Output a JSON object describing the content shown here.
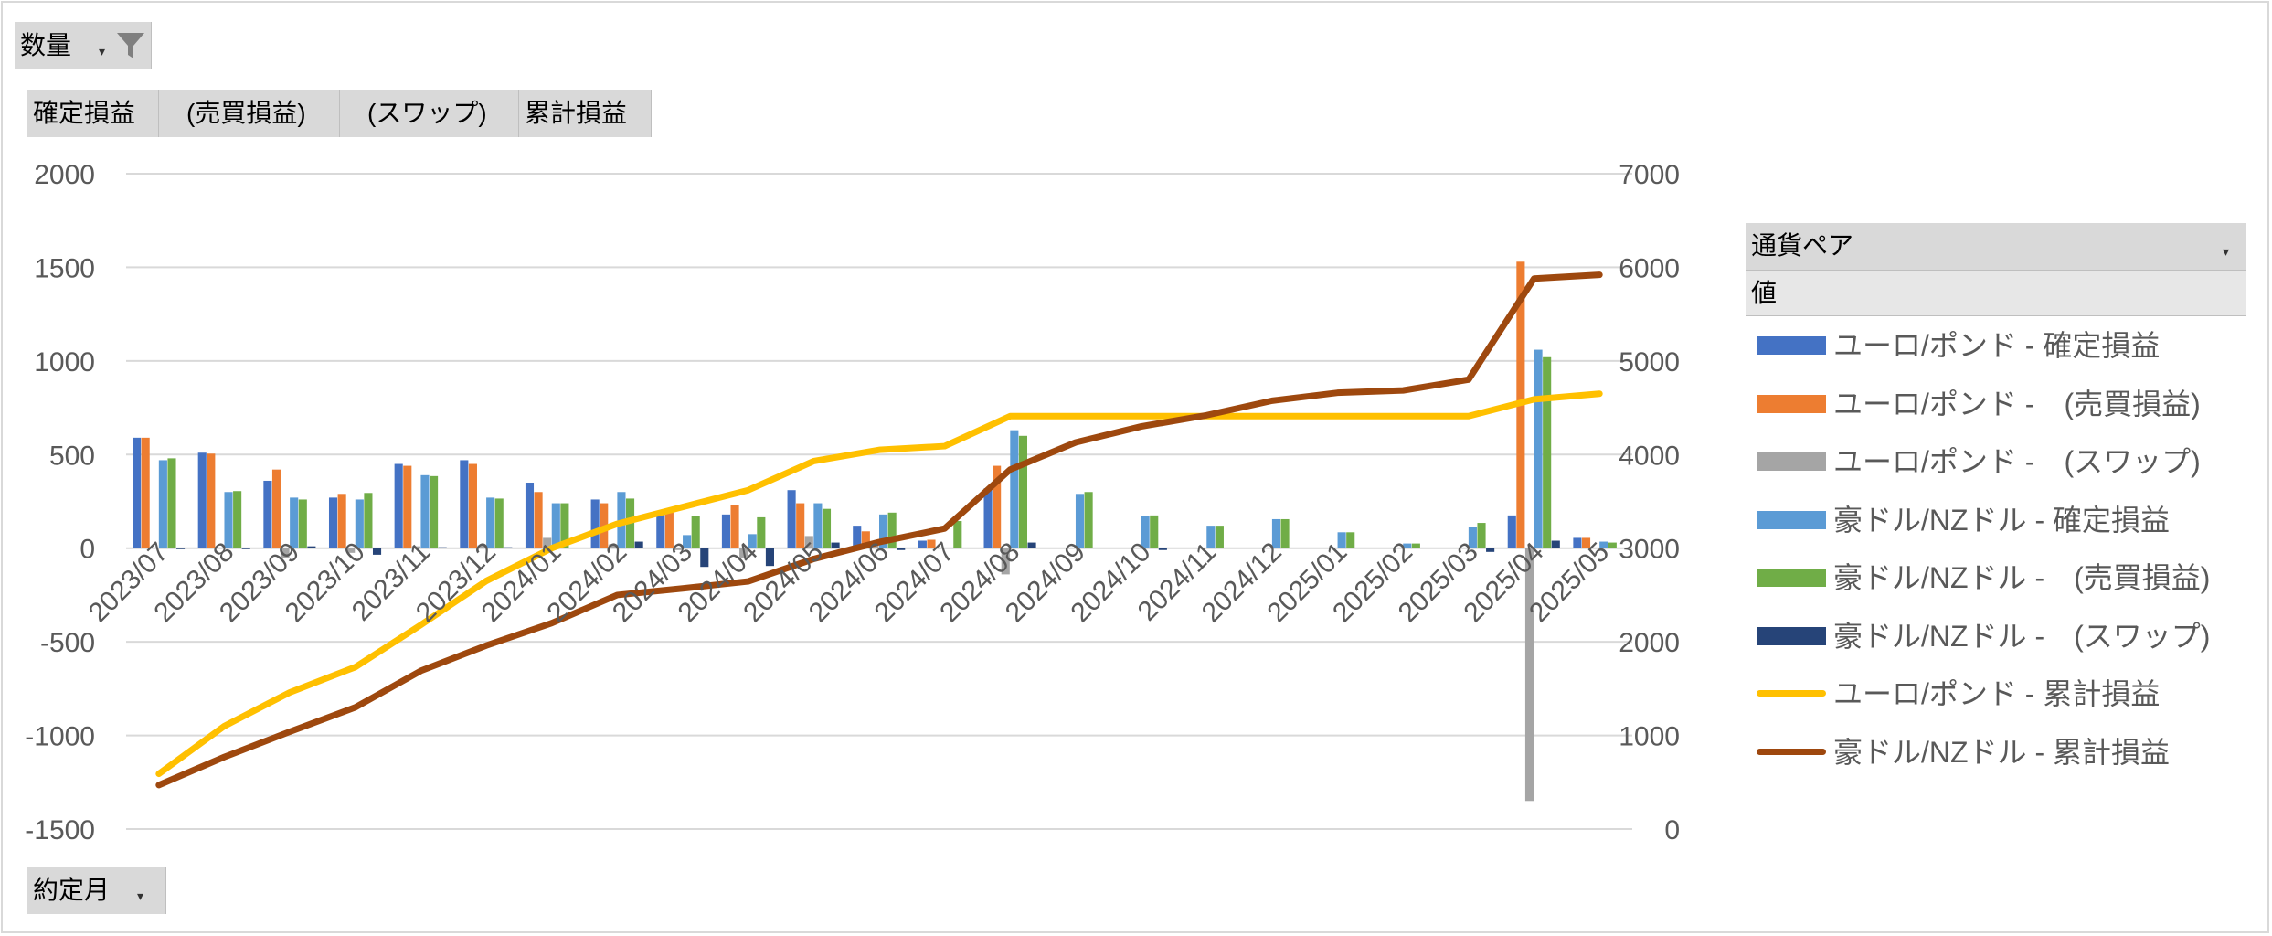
{
  "filter_field": {
    "label": "数量"
  },
  "value_buttons": [
    "確定損益",
    "(売買損益)",
    "(スワップ)",
    "累計損益"
  ],
  "row_field": {
    "label": "約定月"
  },
  "legend": {
    "header": "通貨ペア",
    "subheader": "値"
  },
  "colors": {
    "eur_gbp_confirmed": "#4472c4",
    "eur_gbp_trade": "#ed7d31",
    "eur_gbp_swap": "#a5a5a5",
    "aud_nzd_confirmed": "#5b9bd5",
    "aud_nzd_trade": "#70ad47",
    "aud_nzd_swap": "#264478",
    "eur_gbp_cum": "#ffc000",
    "aud_nzd_cum": "#9e480e"
  },
  "chart_data": {
    "type": "bar",
    "categories": [
      "2023/07",
      "2023/08",
      "2023/09",
      "2023/10",
      "2023/11",
      "2023/12",
      "2024/01",
      "2024/02",
      "2024/03",
      "2024/04",
      "2024/05",
      "2024/06",
      "2024/07",
      "2024/08",
      "2024/09",
      "2024/10",
      "2024/11",
      "2024/12",
      "2025/01",
      "2025/02",
      "2025/03",
      "2025/04",
      "2025/05"
    ],
    "y_left": {
      "ylim": [
        -1500,
        2000
      ],
      "ticks": [
        "2000",
        "1500",
        "1000",
        "500",
        "0",
        "-500",
        "-1000",
        "-1500"
      ]
    },
    "y_right": {
      "ylim": [
        0,
        7000
      ],
      "ticks": [
        "7000",
        "6000",
        "5000",
        "4000",
        "3000",
        "2000",
        "1000",
        "0"
      ]
    },
    "grid": true,
    "legend_position": "right",
    "bar_series": [
      {
        "name": "ユーロ/ポンド - 確定損益",
        "color_key": "eur_gbp_confirmed",
        "values": [
          590,
          510,
          360,
          270,
          450,
          470,
          350,
          260,
          180,
          180,
          310,
          120,
          40,
          320,
          0,
          0,
          0,
          0,
          0,
          0,
          0,
          175,
          55
        ]
      },
      {
        "name": "ユーロ/ポンド -　(売買損益)",
        "color_key": "eur_gbp_trade",
        "values": [
          590,
          505,
          420,
          290,
          440,
          450,
          300,
          240,
          190,
          230,
          240,
          90,
          45,
          440,
          0,
          0,
          0,
          0,
          0,
          0,
          0,
          1530,
          55
        ]
      },
      {
        "name": "ユーロ/ポンド -　(スワップ)",
        "color_key": "eur_gbp_swap",
        "values": [
          0,
          0,
          -55,
          -25,
          10,
          15,
          55,
          20,
          -10,
          -50,
          65,
          25,
          0,
          -140,
          0,
          0,
          0,
          0,
          0,
          0,
          0,
          -1350,
          0
        ]
      },
      {
        "name": "豪ドル/NZドル - 確定損益",
        "color_key": "aud_nzd_confirmed",
        "values": [
          470,
          300,
          270,
          260,
          390,
          270,
          240,
          300,
          70,
          75,
          240,
          180,
          0,
          630,
          290,
          170,
          120,
          155,
          85,
          25,
          115,
          1060,
          35
        ]
      },
      {
        "name": "豪ドル/NZドル -　(売買損益)",
        "color_key": "aud_nzd_trade",
        "values": [
          480,
          305,
          260,
          295,
          385,
          265,
          240,
          265,
          170,
          165,
          210,
          190,
          145,
          600,
          300,
          175,
          120,
          155,
          85,
          25,
          135,
          1020,
          30
        ]
      },
      {
        "name": "豪ドル/NZドル -　(スワップ)",
        "color_key": "aud_nzd_swap",
        "values": [
          -5,
          -5,
          10,
          -35,
          5,
          5,
          0,
          35,
          -100,
          -95,
          30,
          -10,
          0,
          30,
          0,
          -10,
          0,
          0,
          0,
          0,
          -20,
          40,
          0
        ]
      }
    ],
    "line_series": [
      {
        "name": "ユーロ/ポンド - 累計損益",
        "color_key": "eur_gbp_cum",
        "axis": "right",
        "values": [
          590,
          1100,
          1460,
          1730,
          2180,
          2650,
          3000,
          3260,
          3440,
          3620,
          3930,
          4050,
          4090,
          4410,
          4410,
          4410,
          4410,
          4410,
          4410,
          4410,
          4410,
          4590,
          4650
        ]
      },
      {
        "name": "豪ドル/NZドル - 累計損益",
        "color_key": "aud_nzd_cum",
        "axis": "right",
        "values": [
          470,
          770,
          1040,
          1300,
          1690,
          1960,
          2200,
          2500,
          2570,
          2645,
          2885,
          3065,
          3210,
          3840,
          4130,
          4300,
          4420,
          4575,
          4660,
          4685,
          4800,
          5880,
          5920
        ]
      }
    ]
  }
}
